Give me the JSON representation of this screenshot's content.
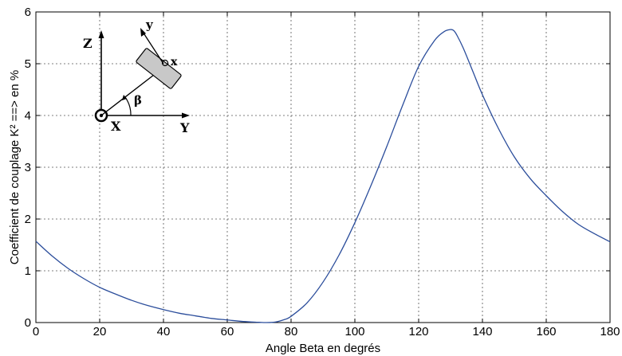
{
  "chart_data": {
    "type": "line",
    "title": "",
    "xlabel": "Angle Beta en degrés",
    "ylabel": "Coefficient de couplage K² ==> en %",
    "xlim": [
      0,
      180
    ],
    "ylim": [
      0,
      6
    ],
    "x_ticks": [
      0,
      20,
      40,
      60,
      80,
      100,
      120,
      140,
      160,
      180
    ],
    "y_ticks": [
      0,
      1,
      2,
      3,
      4,
      5,
      6
    ],
    "x_tick_labels": [
      "0",
      "20",
      "40",
      "60",
      "80",
      "100",
      "120",
      "140",
      "160",
      "180"
    ],
    "y_tick_labels": [
      "0",
      "1",
      "2",
      "3",
      "4",
      "5",
      "6"
    ],
    "grid": true,
    "legend": "none",
    "series": [
      {
        "color": "#2b4d9b",
        "x": [
          0,
          5,
          10,
          15,
          20,
          25,
          30,
          35,
          40,
          45,
          50,
          55,
          60,
          65,
          70,
          72,
          75,
          78,
          80,
          85,
          90,
          95,
          100,
          105,
          110,
          115,
          120,
          125,
          128,
          130,
          131,
          132,
          134,
          137,
          140,
          145,
          150,
          155,
          160,
          165,
          170,
          175,
          180
        ],
        "y": [
          1.57,
          1.29,
          1.05,
          0.85,
          0.68,
          0.55,
          0.43,
          0.33,
          0.25,
          0.18,
          0.13,
          0.08,
          0.05,
          0.02,
          0.005,
          0.0,
          0.01,
          0.06,
          0.12,
          0.38,
          0.78,
          1.3,
          1.93,
          2.64,
          3.4,
          4.2,
          4.95,
          5.45,
          5.62,
          5.66,
          5.64,
          5.55,
          5.3,
          4.85,
          4.4,
          3.75,
          3.2,
          2.78,
          2.45,
          2.15,
          1.9,
          1.72,
          1.56
        ]
      }
    ]
  },
  "inset": {
    "z_label": "Z",
    "y_label": "Y",
    "x_label": "X",
    "rot_y_label": "y",
    "rot_x_label": "x",
    "beta_label": "β"
  }
}
